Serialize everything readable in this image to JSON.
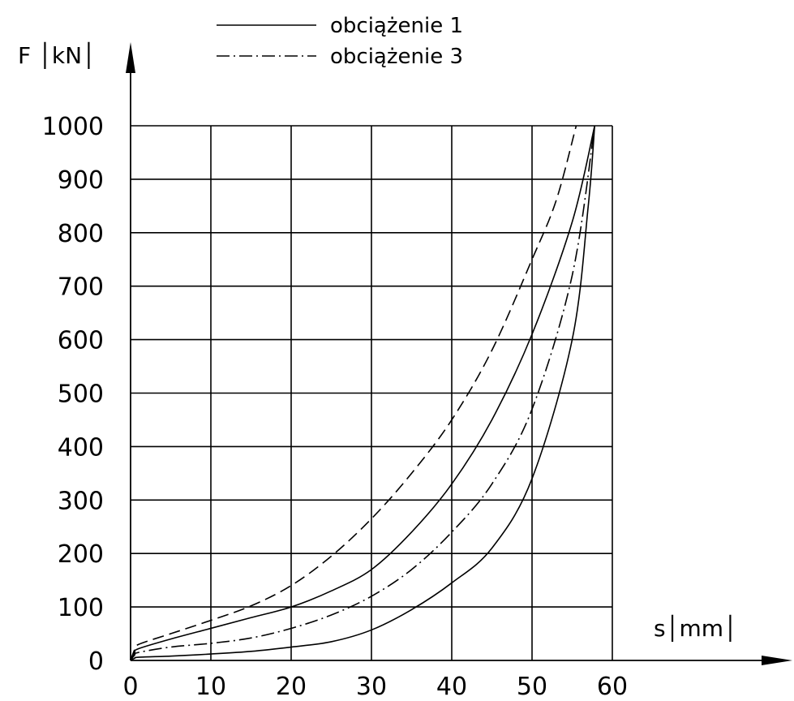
{
  "chart_data": {
    "type": "line",
    "title": "",
    "xlabel": "s│mm│",
    "ylabel": "F │kN│",
    "xlim": [
      0,
      60
    ],
    "ylim": [
      0,
      1000
    ],
    "x_ticks": [
      "0",
      "10",
      "20",
      "30",
      "40",
      "50",
      "60"
    ],
    "y_ticks": [
      "0",
      "100",
      "200",
      "300",
      "400",
      "500",
      "600",
      "700",
      "800",
      "900",
      "1000"
    ],
    "grid": true,
    "legend_position": "top-center",
    "legend": [
      {
        "label": "obciążenie 1",
        "style": "solid"
      },
      {
        "label": "obciążenie 3",
        "style": "dashdot"
      }
    ],
    "series": [
      {
        "style": "dashed",
        "points": [
          [
            0,
            0
          ],
          [
            0.5,
            20
          ],
          [
            1,
            30
          ],
          [
            5,
            50
          ],
          [
            10,
            75
          ],
          [
            15,
            102
          ],
          [
            20,
            140
          ],
          [
            25,
            195
          ],
          [
            30,
            265
          ],
          [
            35,
            350
          ],
          [
            40,
            450
          ],
          [
            45,
            580
          ],
          [
            50,
            750
          ],
          [
            53,
            860
          ],
          [
            55.5,
            1000
          ]
        ]
      },
      {
        "style": "solid",
        "points": [
          [
            0,
            0
          ],
          [
            0.5,
            15
          ],
          [
            1,
            22
          ],
          [
            5,
            40
          ],
          [
            10,
            60
          ],
          [
            15,
            80
          ],
          [
            20,
            100
          ],
          [
            25,
            130
          ],
          [
            30,
            170
          ],
          [
            35,
            240
          ],
          [
            40,
            330
          ],
          [
            45,
            450
          ],
          [
            50,
            610
          ],
          [
            55,
            820
          ],
          [
            57.8,
            1000
          ]
        ]
      },
      {
        "style": "dashdot",
        "points": [
          [
            0,
            0
          ],
          [
            0.5,
            10
          ],
          [
            1,
            15
          ],
          [
            5,
            25
          ],
          [
            10,
            32
          ],
          [
            15,
            42
          ],
          [
            20,
            60
          ],
          [
            25,
            85
          ],
          [
            30,
            120
          ],
          [
            35,
            170
          ],
          [
            40,
            240
          ],
          [
            45,
            330
          ],
          [
            50,
            470
          ],
          [
            55,
            720
          ],
          [
            57.8,
            1000
          ]
        ]
      },
      {
        "style": "solid",
        "points": [
          [
            0,
            0
          ],
          [
            0.5,
            4
          ],
          [
            1,
            6
          ],
          [
            5,
            8
          ],
          [
            10,
            12
          ],
          [
            15,
            17
          ],
          [
            20,
            25
          ],
          [
            25,
            35
          ],
          [
            30,
            57
          ],
          [
            35,
            95
          ],
          [
            40,
            145
          ],
          [
            45,
            210
          ],
          [
            50,
            340
          ],
          [
            55,
            600
          ],
          [
            57,
            850
          ],
          [
            57.8,
            1000
          ]
        ]
      }
    ]
  }
}
